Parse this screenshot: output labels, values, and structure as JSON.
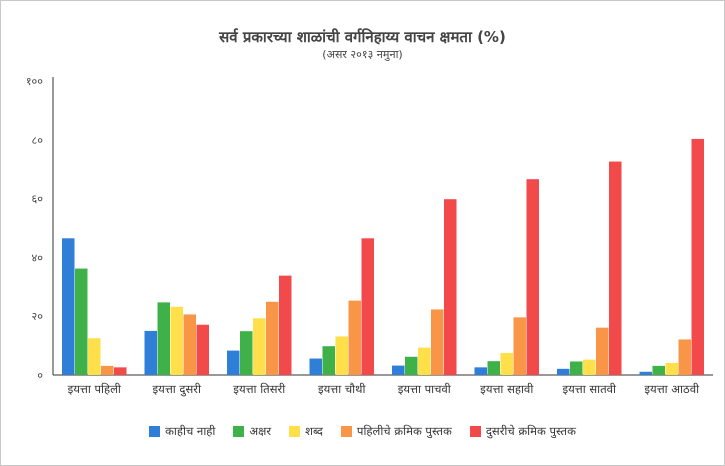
{
  "chart_data": {
    "type": "bar",
    "title": "सर्व प्रकारच्या शाळांची वर्गनिहाय्य वाचन क्षमता (%)",
    "subtitle": "(असर २०१३ नमुना)",
    "ylim": [
      0,
      100
    ],
    "yticks": [
      "०",
      "२०",
      "४०",
      "६०",
      "८०",
      "१००"
    ],
    "categories": [
      "इयत्ता पहिली",
      "इयत्ता दुसरी",
      "इयत्ता तिसरी",
      "इयत्ता चौथी",
      "इयत्ता पाचवी",
      "इयत्ता सहावी",
      "इयत्ता सातवी",
      "इयत्ता आठवी"
    ],
    "series": [
      {
        "name": "काहीच नाही",
        "color": "#2f7ed8",
        "values": [
          46.5,
          15,
          8.3,
          5.6,
          3.2,
          2.6,
          2.1,
          1.1
        ]
      },
      {
        "name": "अक्षर",
        "color": "#3eb149",
        "values": [
          36.2,
          24.7,
          14.9,
          9.8,
          6.2,
          4.7,
          4.6,
          3.1
        ]
      },
      {
        "name": "शब्द",
        "color": "#ffdf4a",
        "values": [
          12.5,
          23.2,
          19.3,
          13.1,
          9.3,
          7.5,
          5.2,
          4.1
        ]
      },
      {
        "name": "पहिलीचे क्रमिक पुस्तक",
        "color": "#f89546",
        "values": [
          3.1,
          20.6,
          24.9,
          25.3,
          22.3,
          19.6,
          16.1,
          12.1
        ]
      },
      {
        "name": "दुसरीचे क्रमिक पुस्तक",
        "color": "#f24a4a",
        "values": [
          2.6,
          17.1,
          33.8,
          46.5,
          59.8,
          66.6,
          72.6,
          80.3
        ]
      }
    ],
    "grid": false,
    "legend_position": "bottom"
  }
}
